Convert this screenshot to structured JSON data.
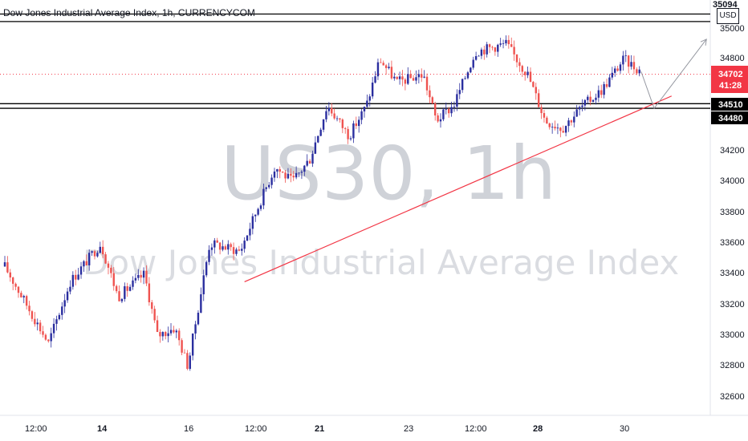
{
  "header": {
    "symbol_title": "Dow Jones Industrial Average Index, 1h, CURRENCYCOM",
    "currency": "USD",
    "top_price": "35094"
  },
  "watermark": {
    "ticker": "US30, 1h",
    "name": "Dow Jones Industrial Average Index"
  },
  "price_axis": {
    "ticks": [
      "35000",
      "34800",
      "34200",
      "34000",
      "33800",
      "33600",
      "33400",
      "33200",
      "33000",
      "32800",
      "32600"
    ]
  },
  "time_axis": {
    "ticks": [
      "12:00",
      "14",
      "16",
      "12:00",
      "21",
      "23",
      "12:00",
      "28",
      "30"
    ]
  },
  "badges": {
    "last_price": "34702",
    "countdown": "41:28",
    "level_upper": "34510",
    "level_lower": "34480"
  },
  "colors": {
    "up": "#2a2e9f",
    "down": "#ef5350",
    "trendline": "#f23645",
    "arrow": "#9598a1",
    "level": "#000000",
    "last_price_badge": "#f23645"
  },
  "chart_data": {
    "type": "candlestick",
    "title": "Dow Jones Industrial Average Index, 1h, CURRENCYCOM",
    "ylim": [
      32500,
      35100
    ],
    "path_waypoints": [
      {
        "x": 0.0,
        "y": 33450
      },
      {
        "x": 0.4,
        "y": 33250
      },
      {
        "x": 1.0,
        "y": 32950
      },
      {
        "x": 1.5,
        "y": 33350
      },
      {
        "x": 2.2,
        "y": 33600
      },
      {
        "x": 2.6,
        "y": 33250
      },
      {
        "x": 3.2,
        "y": 33400
      },
      {
        "x": 3.5,
        "y": 33000
      },
      {
        "x": 3.9,
        "y": 33050
      },
      {
        "x": 4.2,
        "y": 32800
      },
      {
        "x": 4.7,
        "y": 33600
      },
      {
        "x": 5.4,
        "y": 33550
      },
      {
        "x": 5.9,
        "y": 33900
      },
      {
        "x": 6.2,
        "y": 34100
      },
      {
        "x": 6.6,
        "y": 34000
      },
      {
        "x": 7.0,
        "y": 34150
      },
      {
        "x": 7.4,
        "y": 34500
      },
      {
        "x": 7.9,
        "y": 34300
      },
      {
        "x": 8.3,
        "y": 34500
      },
      {
        "x": 8.6,
        "y": 34800
      },
      {
        "x": 9.0,
        "y": 34650
      },
      {
        "x": 9.6,
        "y": 34700
      },
      {
        "x": 9.9,
        "y": 34400
      },
      {
        "x": 10.3,
        "y": 34500
      },
      {
        "x": 10.8,
        "y": 34850
      },
      {
        "x": 11.5,
        "y": 34900
      },
      {
        "x": 12.0,
        "y": 34700
      },
      {
        "x": 12.4,
        "y": 34400
      },
      {
        "x": 12.8,
        "y": 34350
      },
      {
        "x": 13.2,
        "y": 34480
      },
      {
        "x": 13.7,
        "y": 34600
      },
      {
        "x": 14.2,
        "y": 34800
      },
      {
        "x": 14.6,
        "y": 34720
      }
    ],
    "horizontal_levels": [
      35094,
      35045,
      34510,
      34480
    ],
    "last_price": 34702,
    "trendline": [
      {
        "x": 5.5,
        "y": 33350
      },
      {
        "x": 15.3,
        "y": 34560
      }
    ],
    "projection": [
      {
        "x": 14.6,
        "y": 34720
      },
      {
        "x": 14.9,
        "y": 34480
      },
      {
        "x": 16.1,
        "y": 34930
      }
    ]
  }
}
